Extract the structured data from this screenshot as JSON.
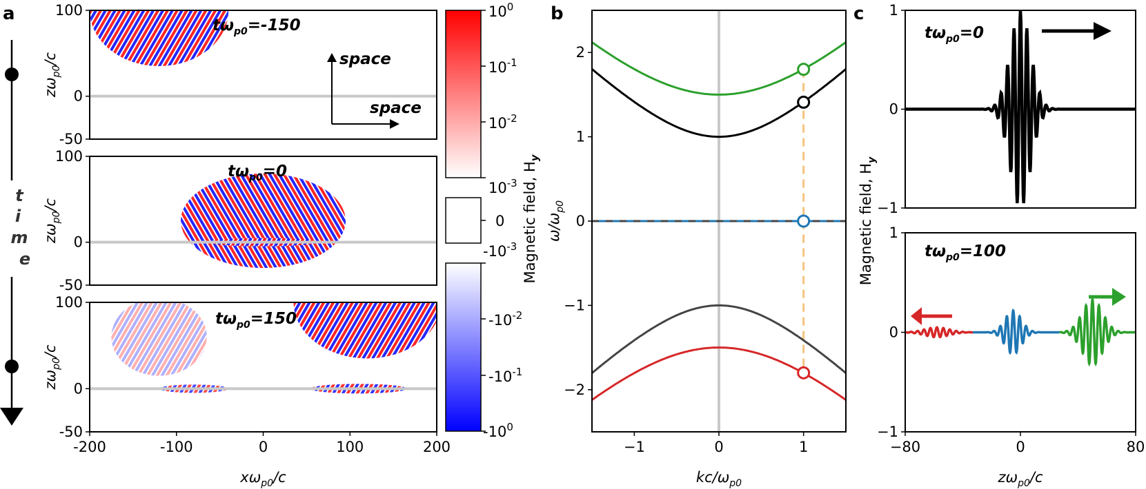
{
  "panel_letters": {
    "a": "a",
    "b": "b",
    "c": "c"
  },
  "time_arrow": {
    "letters": [
      "t",
      "i",
      "m",
      "e"
    ]
  },
  "colorbar": {
    "label": "Magnetic field, H",
    "label_sub": "y",
    "pos_ticks": [
      {
        "base": "10",
        "exp": "0"
      },
      {
        "base": "10",
        "exp": "-1"
      },
      {
        "base": "10",
        "exp": "-2"
      },
      {
        "base": "10",
        "exp": "-3"
      }
    ],
    "zero_tick": "0",
    "neg_ticks": [
      {
        "base": "-10",
        "exp": "-3"
      },
      {
        "base": "-10",
        "exp": "-2"
      },
      {
        "base": "-10",
        "exp": "-1"
      },
      {
        "base": "-10",
        "exp": "0"
      }
    ]
  },
  "chart_data": [
    {
      "id": "a",
      "type": "heatmap",
      "subplots": [
        {
          "annotation": "tω",
          "annotation_sub": "p0",
          "annotation_rest": "=-150",
          "wavepackets": [
            {
              "x": -120,
              "z": 100,
              "rx": 80,
              "rz": 65
            }
          ]
        },
        {
          "annotation": "tω",
          "annotation_sub": "p0",
          "annotation_rest": "=0",
          "wavepackets": [
            {
              "x": 0,
              "z": 25,
              "rx": 95,
              "rz": 55
            }
          ]
        },
        {
          "annotation": "tω",
          "annotation_sub": "p0",
          "annotation_rest": "=150",
          "wavepackets": [
            {
              "x": 120,
              "z": 100,
              "rx": 85,
              "rz": 65
            },
            {
              "x": -120,
              "z": 60,
              "rx": 55,
              "rz": 45
            }
          ]
        }
      ],
      "xlim": [
        -200,
        200
      ],
      "ylim": [
        -50,
        100
      ],
      "x_ticks": [
        "-200",
        "-100",
        "0",
        "100",
        "200"
      ],
      "y_ticks": [
        "100",
        "0",
        "-50"
      ],
      "xlabel": "xω",
      "xlabel_sub": "p0",
      "xlabel_rest": "/c",
      "ylabel": "zω",
      "ylabel_sub": "p0",
      "ylabel_rest": "/c",
      "inset_axes": {
        "up": "space",
        "right": "space"
      }
    },
    {
      "id": "b",
      "type": "line",
      "xlim": [
        -1.5,
        1.5
      ],
      "ylim": [
        -2.5,
        2.5
      ],
      "x_ticks": [
        "−1",
        "0",
        "1"
      ],
      "y_ticks": [
        "2",
        "1",
        "0",
        "−1",
        "−2"
      ],
      "xlabel": "kc/ω",
      "xlabel_sub": "p0",
      "ylabel": "ω/ω",
      "ylabel_sub": "p0",
      "series": [
        {
          "color": "#2ca02c",
          "formula": "sqrt(2.25+k^2)"
        },
        {
          "color": "#000000",
          "formula": "sqrt(1+k^2)"
        },
        {
          "color": "#1f77b4",
          "formula": "0",
          "dashed_overlay": "#444444"
        },
        {
          "color": "#444444",
          "formula": "-sqrt(1+k^2)"
        },
        {
          "color": "#d62728",
          "formula": "-sqrt(2.25+k^2)"
        }
      ],
      "markers": [
        {
          "x": 1,
          "y": 1.8,
          "color": "#2ca02c"
        },
        {
          "x": 1,
          "y": 1.41,
          "color": "#000000"
        },
        {
          "x": 1,
          "y": 0,
          "color": "#1f77b4"
        },
        {
          "x": 1,
          "y": -1.8,
          "color": "#d62728"
        }
      ],
      "vline_color": "#f5c37e"
    },
    {
      "id": "c",
      "type": "line",
      "xlim": [
        -80,
        80
      ],
      "ylim": [
        -1,
        1
      ],
      "x_ticks": [
        "−80",
        "0",
        "80"
      ],
      "y_ticks": [
        "1",
        "0",
        "−1"
      ],
      "xlabel": "zω",
      "xlabel_sub": "p0",
      "xlabel_rest": "/c",
      "ylabel": "Magnetic field, H",
      "ylabel_sub": "y",
      "subplots": [
        {
          "annotation": "tω",
          "annotation_sub": "p0",
          "annotation_rest": "=0",
          "packets": [
            {
              "color": "#000000",
              "center": 0,
              "amp": 1.0,
              "sigma": 10,
              "k": 1.0
            }
          ],
          "arrow": {
            "direction": "right",
            "color": "#000000"
          }
        },
        {
          "annotation": "tω",
          "annotation_sub": "p0",
          "annotation_rest": "=100",
          "packets": [
            {
              "color": "#d62728",
              "center": -58,
              "amp": 0.05,
              "sigma": 12,
              "k": 1.0,
              "range": [
                -80,
                -33
              ]
            },
            {
              "color": "#1f77b4",
              "center": -5,
              "amp": 0.22,
              "sigma": 8,
              "k": 1.0,
              "range": [
                -33,
                27
              ]
            },
            {
              "color": "#2ca02c",
              "center": 50,
              "amp": 0.33,
              "sigma": 10,
              "k": 1.0,
              "range": [
                27,
                80
              ]
            }
          ],
          "arrows": [
            {
              "direction": "left",
              "color": "#d62728"
            },
            {
              "direction": "right",
              "color": "#2ca02c"
            }
          ]
        }
      ]
    }
  ]
}
